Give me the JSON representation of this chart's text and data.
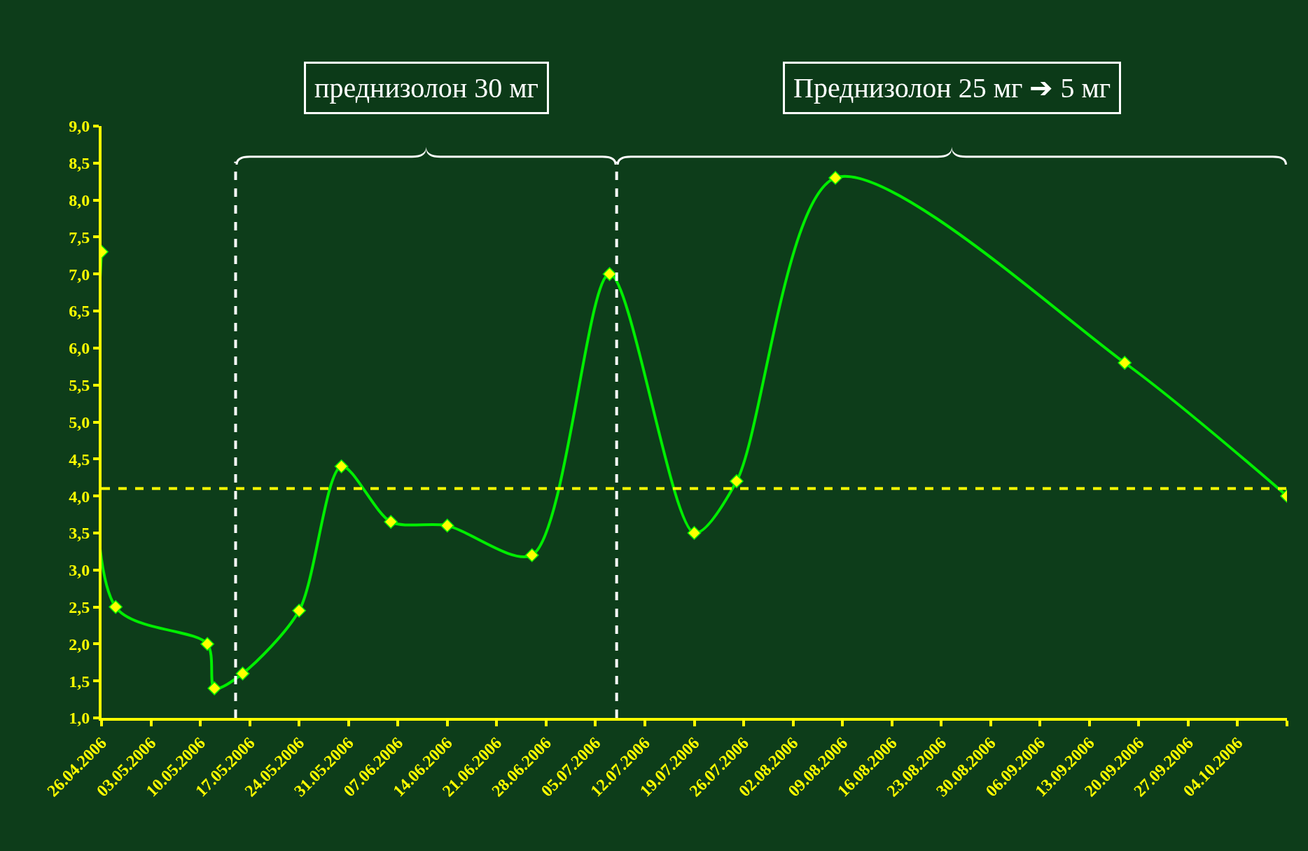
{
  "chart_data": {
    "type": "line",
    "annotations": [
      "преднизолон 30 мг",
      "Преднизолон 25 мг ➔ 5 мг"
    ],
    "x": [
      "2006-04-26",
      "2006-04-28",
      "2006-05-11",
      "2006-05-12",
      "2006-05-16",
      "2006-05-24",
      "2006-05-30",
      "2006-06-06",
      "2006-06-14",
      "2006-06-26",
      "2006-07-07",
      "2006-07-19",
      "2006-07-25",
      "2006-08-08",
      "2006-09-18",
      "2006-10-11"
    ],
    "series": [
      {
        "color": "#00ee00",
        "values": [
          7.3,
          2.5,
          2.0,
          1.4,
          1.6,
          2.45,
          4.4,
          3.65,
          3.6,
          3.2,
          7.0,
          3.5,
          4.2,
          8.3,
          5.8,
          4.0
        ]
      }
    ],
    "xlim": [
      "2006-04-26",
      "2006-10-11"
    ],
    "xticks": [
      {
        "value": "2006-04-26",
        "label": "26.04.2006"
      },
      {
        "value": "2006-05-03",
        "label": "03.05.2006"
      },
      {
        "value": "2006-05-10",
        "label": "10.05.2006"
      },
      {
        "value": "2006-05-17",
        "label": "17.05.2006"
      },
      {
        "value": "2006-05-24",
        "label": "24.05.2006"
      },
      {
        "value": "2006-05-31",
        "label": "31.05.2006"
      },
      {
        "value": "2006-06-07",
        "label": "07.06.2006"
      },
      {
        "value": "2006-06-14",
        "label": "14.06.2006"
      },
      {
        "value": "2006-06-21",
        "label": "21.06.2006"
      },
      {
        "value": "2006-06-28",
        "label": "28.06.2006"
      },
      {
        "value": "2006-07-05",
        "label": "05.07.2006"
      },
      {
        "value": "2006-07-12",
        "label": "12.07.2006"
      },
      {
        "value": "2006-07-19",
        "label": "19.07.2006"
      },
      {
        "value": "2006-07-26",
        "label": "26.07.2006"
      },
      {
        "value": "2006-08-02",
        "label": "02.08.2006"
      },
      {
        "value": "2006-08-09",
        "label": "09.08.2006"
      },
      {
        "value": "2006-08-16",
        "label": "16.08.2006"
      },
      {
        "value": "2006-08-23",
        "label": "23.08.2006"
      },
      {
        "value": "2006-08-30",
        "label": "30.08.2006"
      },
      {
        "value": "2006-09-06",
        "label": "06.09.2006"
      },
      {
        "value": "2006-09-13",
        "label": "13.09.2006"
      },
      {
        "value": "2006-09-20",
        "label": "20.09.2006"
      },
      {
        "value": "2006-09-27",
        "label": "27.09.2006"
      },
      {
        "value": "2006-10-04",
        "label": "04.10.2006"
      },
      {
        "value": "2006-10-11",
        "label": null
      }
    ],
    "ylim": [
      1.0,
      9.0
    ],
    "yticks": [
      {
        "value": 1.0,
        "label": "1,0"
      },
      {
        "value": 1.5,
        "label": "1,5"
      },
      {
        "value": 2.0,
        "label": "2,0"
      },
      {
        "value": 2.5,
        "label": "2,5"
      },
      {
        "value": 3.0,
        "label": "3,0"
      },
      {
        "value": 3.5,
        "label": "3,5"
      },
      {
        "value": 4.0,
        "label": "4,0"
      },
      {
        "value": 4.5,
        "label": "4,5"
      },
      {
        "value": 5.0,
        "label": "5,0"
      },
      {
        "value": 5.5,
        "label": "5,5"
      },
      {
        "value": 6.0,
        "label": "6,0"
      },
      {
        "value": 6.5,
        "label": "6,5"
      },
      {
        "value": 7.0,
        "label": "7,0"
      },
      {
        "value": 7.5,
        "label": "7,5"
      },
      {
        "value": 8.0,
        "label": "8,0"
      },
      {
        "value": 8.5,
        "label": "8,5"
      },
      {
        "value": 9.0,
        "label": "9,0"
      }
    ],
    "ref_lines": [
      {
        "axis": "y",
        "value": 4.1,
        "color": "#ffff00",
        "line_style": "dashed"
      },
      {
        "axis": "x",
        "value": "2006-05-15",
        "color": "#ffffff",
        "line_style": "dashed"
      },
      {
        "axis": "x",
        "value": "2006-07-08",
        "color": "#ffffff",
        "line_style": "dashed"
      }
    ],
    "grid": false,
    "marker": "diamond",
    "line_style": "solid"
  }
}
